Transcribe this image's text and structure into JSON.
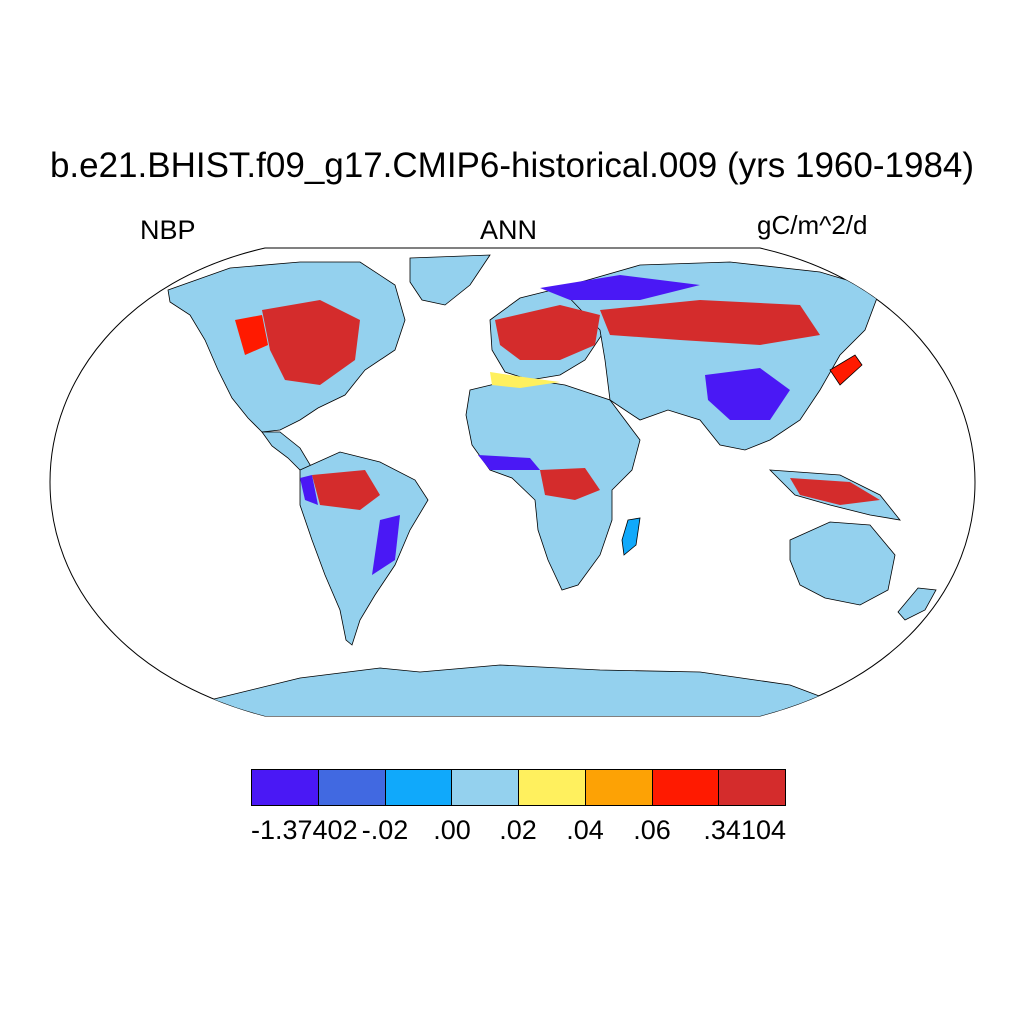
{
  "title": "b.e21.BHIST.f09_g17.CMIP6-historical.009 (yrs 1960-1984)",
  "variable": "NBP",
  "season": "ANN",
  "units": "gC/m^2/d",
  "colors": {
    "ocean": "#ffffff",
    "coast": "#000000"
  },
  "colorbar": {
    "colors": [
      "#4a18f5",
      "#4169e1",
      "#10a9fb",
      "#94d1ee",
      "#fff05e",
      "#fda205",
      "#ff1a00",
      "#d42c2c"
    ],
    "labels": [
      "-1.37402",
      "-.02",
      ".00",
      ".02",
      ".04",
      ".06",
      ".34104"
    ]
  }
}
